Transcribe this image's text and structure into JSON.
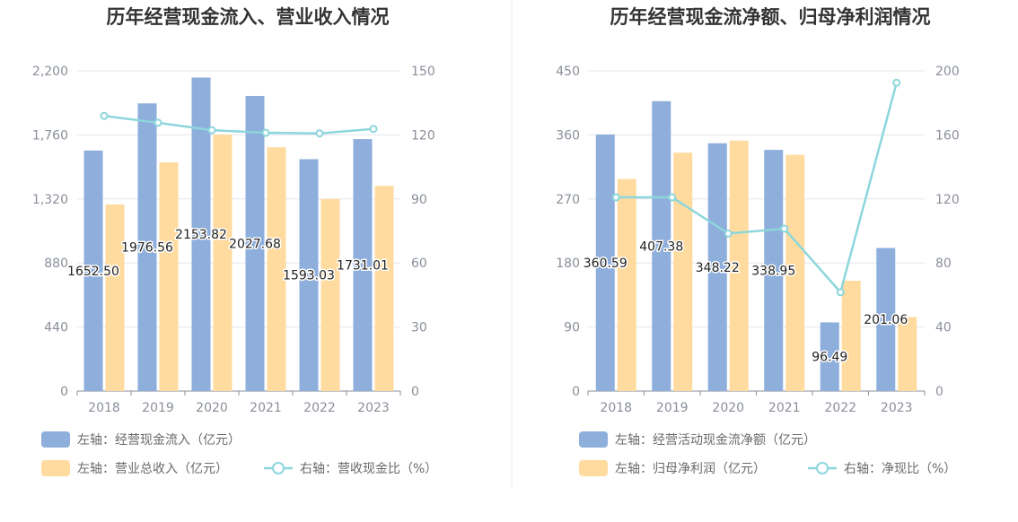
{
  "chart_data": [
    {
      "type": "bar",
      "title": "历年经营现金流入、营业收入情况",
      "categories": [
        "2018",
        "2019",
        "2020",
        "2021",
        "2022",
        "2023"
      ],
      "left_axis": {
        "ticks": [
          "0",
          "440",
          "880",
          "1,320",
          "1,760",
          "2,200"
        ],
        "ylim": [
          0,
          2200
        ]
      },
      "right_axis": {
        "ticks": [
          "0",
          "30",
          "60",
          "90",
          "120",
          "150"
        ],
        "ylim": [
          0,
          150
        ]
      },
      "series": [
        {
          "name": "左轴：经营现金流入（亿元）",
          "kind": "bar",
          "axis": "left",
          "color": "#8eaedc",
          "values": [
            1652.5,
            1976.56,
            2153.82,
            2027.68,
            1593.03,
            1731.01
          ],
          "labels": [
            "1652.50",
            "1976.56",
            "2153.82",
            "2027.68",
            "1593.03",
            "1731.01"
          ]
        },
        {
          "name": "左轴：营业总收入（亿元）",
          "kind": "bar",
          "axis": "left",
          "color": "#ffdba0",
          "values": [
            1282,
            1572,
            1762,
            1675,
            1320,
            1410
          ]
        },
        {
          "name": "右轴：营收现金比（%）",
          "kind": "line",
          "axis": "right",
          "color": "#8dd6dc",
          "values": [
            128.9,
            125.7,
            122.2,
            121.0,
            120.7,
            122.8
          ]
        }
      ],
      "grid": true,
      "legend_position": "bottom"
    },
    {
      "type": "bar",
      "title": "历年经营现金流净额、归母净利润情况",
      "categories": [
        "2018",
        "2019",
        "2020",
        "2021",
        "2022",
        "2023"
      ],
      "left_axis": {
        "ticks": [
          "0",
          "90",
          "180",
          "270",
          "360",
          "450"
        ],
        "ylim": [
          0,
          450
        ]
      },
      "right_axis": {
        "ticks": [
          "0",
          "40",
          "80",
          "120",
          "160",
          "200"
        ],
        "ylim": [
          0,
          200
        ]
      },
      "series": [
        {
          "name": "左轴：经营活动现金流净额（亿元）",
          "kind": "bar",
          "axis": "left",
          "color": "#8eaedc",
          "values": [
            360.59,
            407.38,
            348.22,
            338.95,
            96.49,
            201.06
          ],
          "labels": [
            "360.59",
            "407.38",
            "348.22",
            "338.95",
            "96.49",
            "201.06"
          ]
        },
        {
          "name": "左轴：归母净利润（亿元）",
          "kind": "bar",
          "axis": "left",
          "color": "#ffdba0",
          "values": [
            298,
            335,
            352,
            332,
            155,
            104
          ]
        },
        {
          "name": "右轴：净现比（%）",
          "kind": "line",
          "axis": "right",
          "color": "#8dd6dc",
          "values": [
            121,
            121,
            98.4,
            101.4,
            61.7,
            192.6
          ]
        }
      ],
      "grid": true,
      "legend_position": "bottom"
    }
  ]
}
